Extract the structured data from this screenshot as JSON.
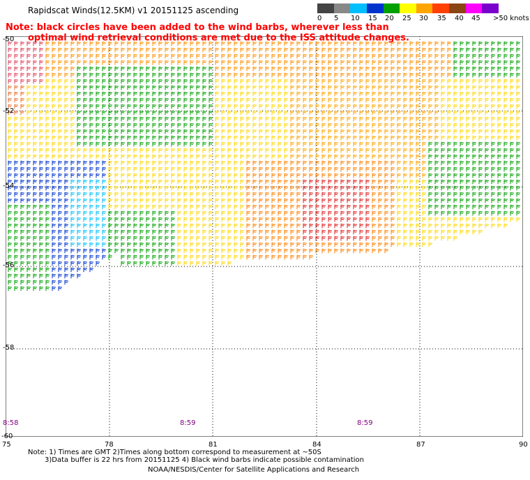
{
  "header": {
    "title": "Rapidscat Winds(12.5KM) v1 20151125 ascending",
    "note_line1": "Note: black circles have been added to the wind barbs, wherever less than",
    "note_line2": "optimal wind retrieval conditions are met due to the ISS attitude changes."
  },
  "legend": {
    "labels": [
      "0",
      "5",
      "10",
      "15",
      "20",
      "25",
      "30",
      "35",
      "40",
      "45",
      ">50 knots"
    ],
    "colors": [
      "#444444",
      "#888888",
      "#00bfff",
      "#0033cc",
      "#00a000",
      "#ffff00",
      "#ffa500",
      "#ff4000",
      "#8b4513",
      "#ff00ff",
      "#7a00cc"
    ]
  },
  "map": {
    "lat_labels": [
      "-50",
      "-52",
      "-54",
      "-56",
      "-58",
      "-60"
    ],
    "lon_labels": [
      "75",
      "78",
      "81",
      "84",
      "87",
      "90"
    ],
    "time_labels": [
      "8:58",
      "8:59",
      "8:59"
    ]
  },
  "footer": {
    "line1": "Note: 1) Times are GMT 2)Times along bottom correspond to measurement at ~50S",
    "line2": "3)Data buffer is 22 hrs from 20151125 4) Black wind barbs indicate possible contamination",
    "line3": "NOAA/NESDIS/Center for Satellite Applications and Research"
  }
}
